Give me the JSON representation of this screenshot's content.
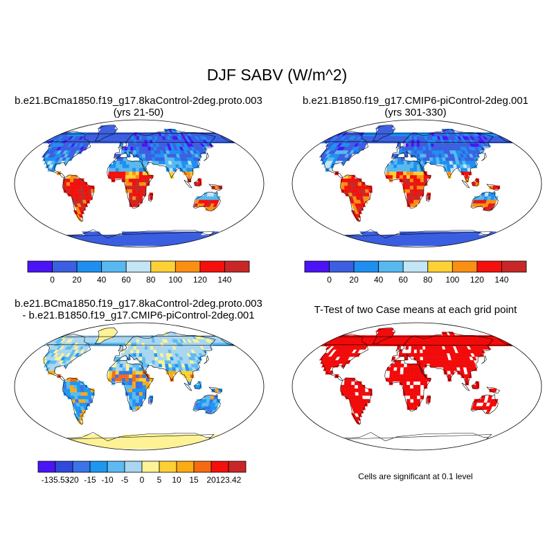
{
  "title": "DJF SABV (W/m^2)",
  "colors": {
    "abs": [
      "#4b14f5",
      "#3b5fe0",
      "#1e8ff0",
      "#57b9f0",
      "#c3e6f7",
      "#fdd136",
      "#fb8f14",
      "#f4100c",
      "#c92727"
    ],
    "diff": [
      "#4b14f5",
      "#2f49db",
      "#3b73e8",
      "#1e97f0",
      "#5dbaf2",
      "#a9d6f0",
      "#fdf296",
      "#fdd136",
      "#fbab14",
      "#f66b12",
      "#f4100c",
      "#c92727"
    ],
    "sig": "#f20a0a",
    "coast": "#000000"
  },
  "chart_data": [
    {
      "type": "heatmap",
      "panel": "top-left",
      "title_line1": "b.e21.BCma1850.f19_g17.8kaControl-2deg.proto.003",
      "title_line2": "(yrs 21-50)",
      "colorbar_labels": [
        "0",
        "20",
        "40",
        "60",
        "80",
        "100",
        "120",
        "140"
      ],
      "colorbar_bounds": [
        0,
        20,
        40,
        60,
        80,
        100,
        120,
        140
      ]
    },
    {
      "type": "heatmap",
      "panel": "top-right",
      "title_line1": "b.e21.B1850.f19_g17.CMIP6-piControl-2deg.001",
      "title_line2": "(yrs 301-330)",
      "colorbar_labels": [
        "0",
        "20",
        "40",
        "60",
        "80",
        "100",
        "120",
        "140"
      ],
      "colorbar_bounds": [
        0,
        20,
        40,
        60,
        80,
        100,
        120,
        140
      ]
    },
    {
      "type": "heatmap",
      "panel": "bottom-left",
      "title_line1": "b.e21.BCma1850.f19_g17.8kaControl-2deg.proto.003",
      "title_line2": "- b.e21.B1850.f19_g17.CMIP6-piControl-2deg.001",
      "colorbar_labels": [
        "-135.53",
        "-20",
        "-15",
        "-10",
        "-5",
        "0",
        "5",
        "10",
        "15",
        "20",
        "123.42"
      ],
      "colorbar_bounds": [
        -135.53,
        -20,
        -15,
        -10,
        -5,
        0,
        5,
        10,
        15,
        20,
        123.42
      ]
    },
    {
      "type": "heatmap",
      "panel": "bottom-right",
      "title_line1": "T-Test of two Case means at each grid point",
      "note": "Cells are significant at 0.1 level"
    }
  ]
}
